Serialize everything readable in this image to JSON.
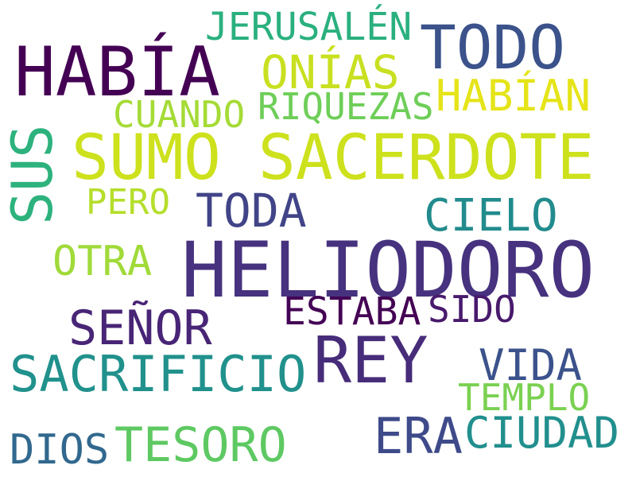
{
  "words": [
    {
      "text": "HELIODORO",
      "color": "#46327e"
    },
    {
      "text": "SUMO SACERDOTE",
      "color": "#cde11d"
    },
    {
      "text": "HABÍA",
      "color": "#440154"
    },
    {
      "text": "REY",
      "color": "#472c7a"
    },
    {
      "text": "TODO",
      "color": "#3b528b"
    },
    {
      "text": "SACRIFICIO",
      "color": "#21918c"
    },
    {
      "text": "SEÑOR",
      "color": "#482576"
    },
    {
      "text": "TESORO",
      "color": "#5ec962"
    },
    {
      "text": "ERA",
      "color": "#3e4a89"
    },
    {
      "text": "CIUDAD",
      "color": "#218f8d"
    },
    {
      "text": "TODA",
      "color": "#414487"
    },
    {
      "text": "SUS",
      "color": "#2db27d"
    },
    {
      "text": "ONÍAS",
      "color": "#c8e020"
    },
    {
      "text": "CIELO",
      "color": "#228b8d"
    },
    {
      "text": "VIDA",
      "color": "#3b528b"
    },
    {
      "text": "HABÍAN",
      "color": "#e5e419"
    },
    {
      "text": "JERUSALÉN",
      "color": "#2ab07f"
    },
    {
      "text": "OTRA",
      "color": "#a0da39"
    },
    {
      "text": "DIOS",
      "color": "#31688e"
    },
    {
      "text": "ESTABA",
      "color": "#440154"
    },
    {
      "text": "RIQUEZAS",
      "color": "#6ece58"
    },
    {
      "text": "CUANDO",
      "color": "#a5db36"
    },
    {
      "text": "TEMPLO",
      "color": "#7ad151"
    },
    {
      "text": "SIDO",
      "color": "#481a6c"
    },
    {
      "text": "PERO",
      "color": "#b5de2b"
    }
  ]
}
